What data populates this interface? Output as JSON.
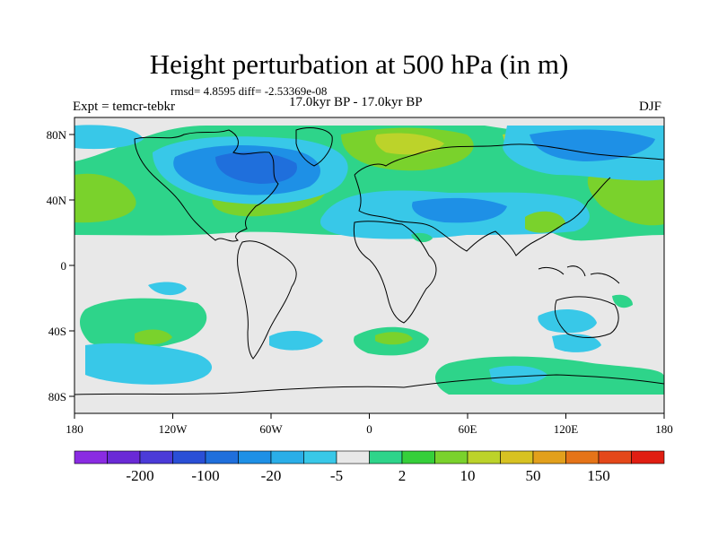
{
  "title": "Height perturbation at 500 hPa (in m)",
  "stats": "rmsd= 4.8595 diff= -2.53369e-08",
  "expt": "Expt = temcr-tebkr",
  "period": "17.0kyr BP - 17.0kyr BP",
  "season": "DJF",
  "axes": {
    "x_ticks": [
      "180",
      "120W",
      "60W",
      "0",
      "60E",
      "120E",
      "180"
    ],
    "y_ticks": [
      "80N",
      "40N",
      "0",
      "40S",
      "80S"
    ]
  },
  "colorbar": {
    "colors": [
      "#8a2be2",
      "#6a2ad6",
      "#4b3bd8",
      "#2a4fd6",
      "#1f6fdc",
      "#1e90e6",
      "#2aaee8",
      "#38c8e8",
      "#e8e8e8",
      "#2ed48a",
      "#35cf3a",
      "#7ad22c",
      "#bcd32a",
      "#d7c222",
      "#e2a01c",
      "#e57418",
      "#e4481a",
      "#e01e12"
    ],
    "labels": [
      "-200",
      "-100",
      "-20",
      "-5",
      "2",
      "10",
      "50",
      "150"
    ],
    "label_after_box": [
      1,
      3,
      5,
      7,
      9,
      11,
      13,
      15
    ]
  },
  "fields": {
    "background": "#e8e8e8",
    "blue_light": "#38c8e8",
    "blue_mid": "#1e90e6",
    "blue_dark": "#1f6fdc",
    "green_light": "#2ed48a",
    "green_mid": "#7ad22c",
    "yellow": "#bcd32a",
    "orange": "#d7c222"
  }
}
